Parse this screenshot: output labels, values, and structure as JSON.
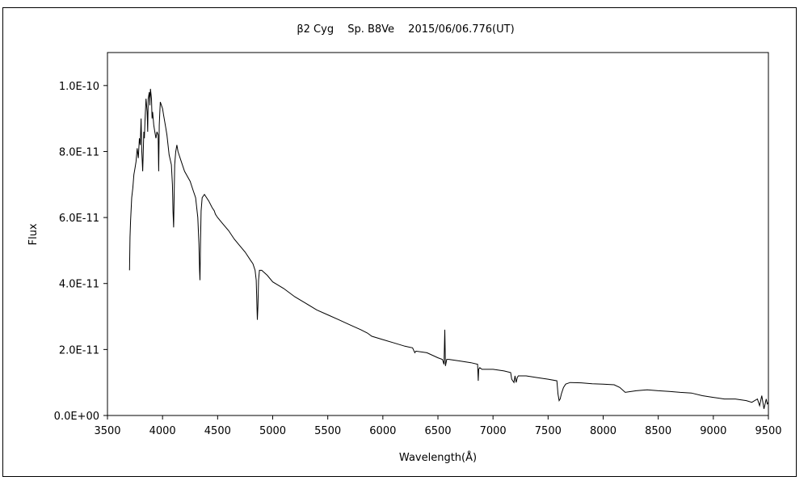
{
  "chart_data": {
    "type": "line",
    "title": "β2 Cyg　 Sp. B8Ve　 2015/06/06.776(UT)",
    "xlabel": "Wavelength(Å)",
    "ylabel": "Flux",
    "xlim": [
      3500,
      9500
    ],
    "ylim": [
      0,
      1.1e-10
    ],
    "xticks": [
      3500,
      4000,
      4500,
      5000,
      5500,
      6000,
      6500,
      7000,
      7500,
      8000,
      8500,
      9000,
      9500
    ],
    "xtick_labels": [
      "3500",
      "4000",
      "4500",
      "5000",
      "5500",
      "6000",
      "6500",
      "7000",
      "7500",
      "8000",
      "8500",
      "9000",
      "9500"
    ],
    "yticks": [
      0,
      2e-11,
      4e-11,
      6e-11,
      8e-11,
      1e-10
    ],
    "ytick_labels": [
      "0.0E+00",
      "2.0E-11",
      "4.0E-11",
      "6.0E-11",
      "8.0E-11",
      "1.0E-10"
    ],
    "grid": false,
    "line_color": "#000000",
    "series": [
      {
        "x": [
          3700,
          3705,
          3710,
          3720,
          3730,
          3740,
          3750,
          3760,
          3770,
          3780,
          3790,
          3798,
          3805,
          3812,
          3820,
          3830,
          3835,
          3840,
          3850,
          3860,
          3865,
          3870,
          3880,
          3885,
          3890,
          3900,
          3905,
          3910,
          3920,
          3930,
          3940,
          3950,
          3960,
          3965,
          3970,
          3975,
          3980,
          3990,
          4000,
          4010,
          4020,
          4030,
          4040,
          4060,
          4080,
          4090,
          4095,
          4101,
          4105,
          4110,
          4120,
          4130,
          4140,
          4150,
          4170,
          4200,
          4250,
          4280,
          4300,
          4320,
          4330,
          4336,
          4340,
          4345,
          4350,
          4360,
          4380,
          4400,
          4420,
          4450,
          4470,
          4480,
          4500,
          4550,
          4600,
          4650,
          4700,
          4750,
          4800,
          4820,
          4840,
          4850,
          4856,
          4861,
          4866,
          4872,
          4880,
          4900,
          4950,
          5000,
          5050,
          5100,
          5200,
          5300,
          5400,
          5500,
          5600,
          5700,
          5800,
          5860,
          5900,
          6000,
          6100,
          6200,
          6270,
          6290,
          6300,
          6400,
          6500,
          6540,
          6555,
          6562,
          6568,
          6580,
          6600,
          6700,
          6800,
          6860,
          6866,
          6870,
          6880,
          6900,
          7000,
          7100,
          7160,
          7170,
          7190,
          7200,
          7210,
          7220,
          7230,
          7250,
          7300,
          7400,
          7500,
          7580,
          7590,
          7600,
          7610,
          7620,
          7640,
          7660,
          7700,
          7800,
          7900,
          8000,
          8100,
          8150,
          8200,
          8300,
          8400,
          8500,
          8600,
          8700,
          8800,
          8900,
          9000,
          9100,
          9200,
          9300,
          9350,
          9400,
          9420,
          9440,
          9460,
          9480,
          9490,
          9500
        ],
        "y": [
          4.4e-11,
          5.4e-11,
          5.9e-11,
          6.6e-11,
          6.9e-11,
          7.3e-11,
          7.5e-11,
          7.7e-11,
          8.1e-11,
          7.8e-11,
          8.4e-11,
          8.2e-11,
          9e-11,
          8e-11,
          7.4e-11,
          8.6e-11,
          8.4e-11,
          8.9e-11,
          9.6e-11,
          9.2e-11,
          8.6e-11,
          9.6e-11,
          9.8e-11,
          9.4e-11,
          9.9e-11,
          9.6e-11,
          9e-11,
          9.2e-11,
          8.8e-11,
          8.6e-11,
          8.4e-11,
          8.6e-11,
          8.5e-11,
          7.4e-11,
          8.8e-11,
          9.2e-11,
          9.5e-11,
          9.4e-11,
          9.3e-11,
          9.1e-11,
          8.9e-11,
          8.7e-11,
          8.5e-11,
          7.9e-11,
          7.6e-11,
          7e-11,
          6.2e-11,
          5.7e-11,
          6.6e-11,
          7.6e-11,
          8e-11,
          8.2e-11,
          8e-11,
          7.9e-11,
          7.7e-11,
          7.4e-11,
          7.1e-11,
          6.8e-11,
          6.6e-11,
          6e-11,
          5.2e-11,
          4.4e-11,
          4.1e-11,
          5.3e-11,
          6.2e-11,
          6.6e-11,
          6.7e-11,
          6.6e-11,
          6.5e-11,
          6.3e-11,
          6.2e-11,
          6.1e-11,
          6e-11,
          5.8e-11,
          5.6e-11,
          5.35e-11,
          5.15e-11,
          4.95e-11,
          4.7e-11,
          4.6e-11,
          4.4e-11,
          4.1e-11,
          3.4e-11,
          2.9e-11,
          3.3e-11,
          4.1e-11,
          4.4e-11,
          4.4e-11,
          4.25e-11,
          4.05e-11,
          3.95e-11,
          3.85e-11,
          3.6e-11,
          3.4e-11,
          3.2e-11,
          3.05e-11,
          2.9e-11,
          2.75e-11,
          2.6e-11,
          2.5e-11,
          2.4e-11,
          2.3e-11,
          2.2e-11,
          2.1e-11,
          2.05e-11,
          1.9e-11,
          1.95e-11,
          1.9e-11,
          1.75e-11,
          1.7e-11,
          1.55e-11,
          2.6e-11,
          1.5e-11,
          1.7e-11,
          1.7e-11,
          1.65e-11,
          1.6e-11,
          1.55e-11,
          1.05e-11,
          1.4e-11,
          1.45e-11,
          1.4e-11,
          1.4e-11,
          1.35e-11,
          1.3e-11,
          1.1e-11,
          1e-11,
          1.2e-11,
          1e-11,
          1.15e-11,
          1.2e-11,
          1.2e-11,
          1.2e-11,
          1.15e-11,
          1.1e-11,
          1.05e-11,
          6.5e-12,
          4.5e-12,
          5e-12,
          6.5e-12,
          8.5e-12,
          9.5e-12,
          1e-11,
          9.9e-12,
          9.6e-12,
          9.5e-12,
          9.3e-12,
          8.5e-12,
          7e-12,
          7.5e-12,
          7.8e-12,
          7.5e-12,
          7.3e-12,
          7e-12,
          6.8e-12,
          6e-12,
          5.5e-12,
          5e-12,
          5e-12,
          4.5e-12,
          4e-12,
          5e-12,
          3e-12,
          6e-12,
          2e-12,
          5e-12,
          3.5e-12,
          4e-12
        ]
      }
    ]
  }
}
